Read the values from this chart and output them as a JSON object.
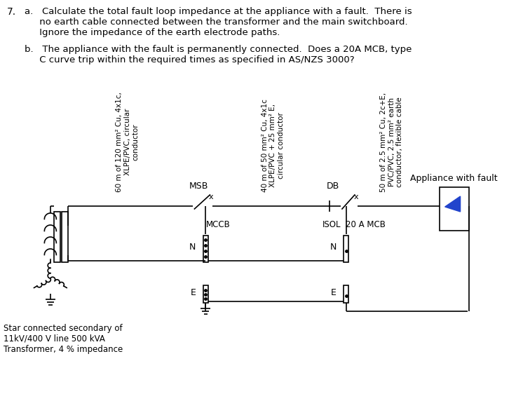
{
  "title_num": "7.",
  "question_a": "a.   Calculate the total fault loop impedance at the appliance with a fault.  There is\n     no earth cable connected between the transformer and the main switchboard.\n     Ignore the impedance of the earth electrode paths.",
  "question_b": "b.   The appliance with the fault is permanently connected.  Does a 20A MCB, type\n     C curve trip within the required times as specified in AS/NZS 3000?",
  "label_cable1": "60 m of 120 mm² Cu, 4x1c,\nXLPE/PVC, circular\nconductor",
  "label_cable2": "40 m of 50 mm² Cu, 4x1c\nXLPE/PVC + 25 mm² E,\ncircular conductor",
  "label_cable3": "50 m of 2.5 mm² Cu, 2c+E,\nPVC/PVC, 2.5 mm² earth\nconductor, flexible cable",
  "label_msb": "MSB",
  "label_db": "DB",
  "label_mccb": "MCCB",
  "label_isol": "ISOL",
  "label_mcb": "20 A MCB",
  "label_appliance": "Appliance with fault",
  "label_N_msb": "N",
  "label_E_msb": "E",
  "label_N_db": "N",
  "label_E_db": "E",
  "label_transformer": "Star connected secondary of\n11kV/400 V line 500 kVA\nTransformer, 4 % impedance",
  "bg_color": "#ffffff",
  "line_color": "#000000",
  "appliance_fill": "#2244cc",
  "text_color": "#000000"
}
